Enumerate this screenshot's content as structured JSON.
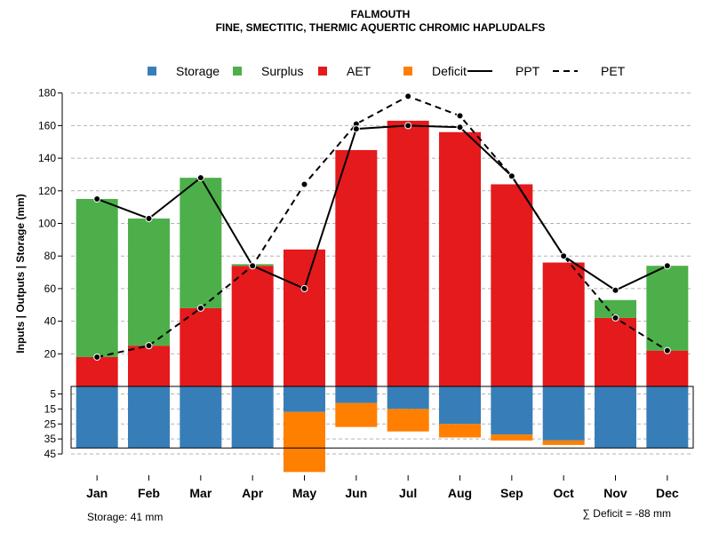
{
  "chart_data": {
    "type": "bar",
    "title": "FALMOUTH",
    "subtitle": "FINE, SMECTITIC, THERMIC AQUERTIC CHROMIC HAPLUDALFS",
    "ylabel": "Inputs | Outputs | Storage    (mm)",
    "categories": [
      "Jan",
      "Feb",
      "Mar",
      "Apr",
      "May",
      "Jun",
      "Jul",
      "Aug",
      "Sep",
      "Oct",
      "Nov",
      "Dec"
    ],
    "ylim_top": [
      0,
      180
    ],
    "yticks_top": [
      20,
      40,
      60,
      80,
      100,
      120,
      140,
      160,
      180
    ],
    "ylim_bottom": [
      0,
      45
    ],
    "yticks_bottom": [
      5,
      15,
      25,
      35,
      45
    ],
    "legend": [
      {
        "label": "Storage",
        "color": "#377EB8",
        "kind": "square"
      },
      {
        "label": "Surplus",
        "color": "#4DAF4A",
        "kind": "square"
      },
      {
        "label": "AET",
        "color": "#E41A1C",
        "kind": "square"
      },
      {
        "label": "Deficit",
        "color": "#FF7F00",
        "kind": "square"
      },
      {
        "label": "PPT",
        "color": "#000000",
        "kind": "solid"
      },
      {
        "label": "PET",
        "color": "#000000",
        "kind": "dashed"
      }
    ],
    "series": [
      {
        "name": "AET",
        "values": [
          18,
          25,
          48,
          74,
          84,
          145,
          163,
          156,
          124,
          76,
          42,
          22
        ]
      },
      {
        "name": "Surplus",
        "values": [
          97,
          78,
          80,
          1,
          0,
          0,
          0,
          0,
          0,
          0,
          11,
          52
        ]
      },
      {
        "name": "PPT",
        "values": [
          115,
          103,
          128,
          74,
          60,
          158,
          160,
          159,
          129,
          80,
          59,
          74
        ]
      },
      {
        "name": "PET",
        "values": [
          18,
          25,
          48,
          74,
          124,
          161,
          178,
          166,
          129,
          80,
          42,
          22
        ]
      },
      {
        "name": "Storage",
        "values": [
          41,
          41,
          41,
          41,
          17,
          11,
          15,
          25,
          32,
          36,
          41,
          41
        ]
      },
      {
        "name": "Deficit",
        "values": [
          0,
          0,
          0,
          0,
          40,
          16,
          15,
          9,
          4,
          3,
          0,
          0
        ]
      }
    ],
    "storage_note": "Storage: 41 mm",
    "deficit_note": "∑ Deficit = -88 mm"
  }
}
